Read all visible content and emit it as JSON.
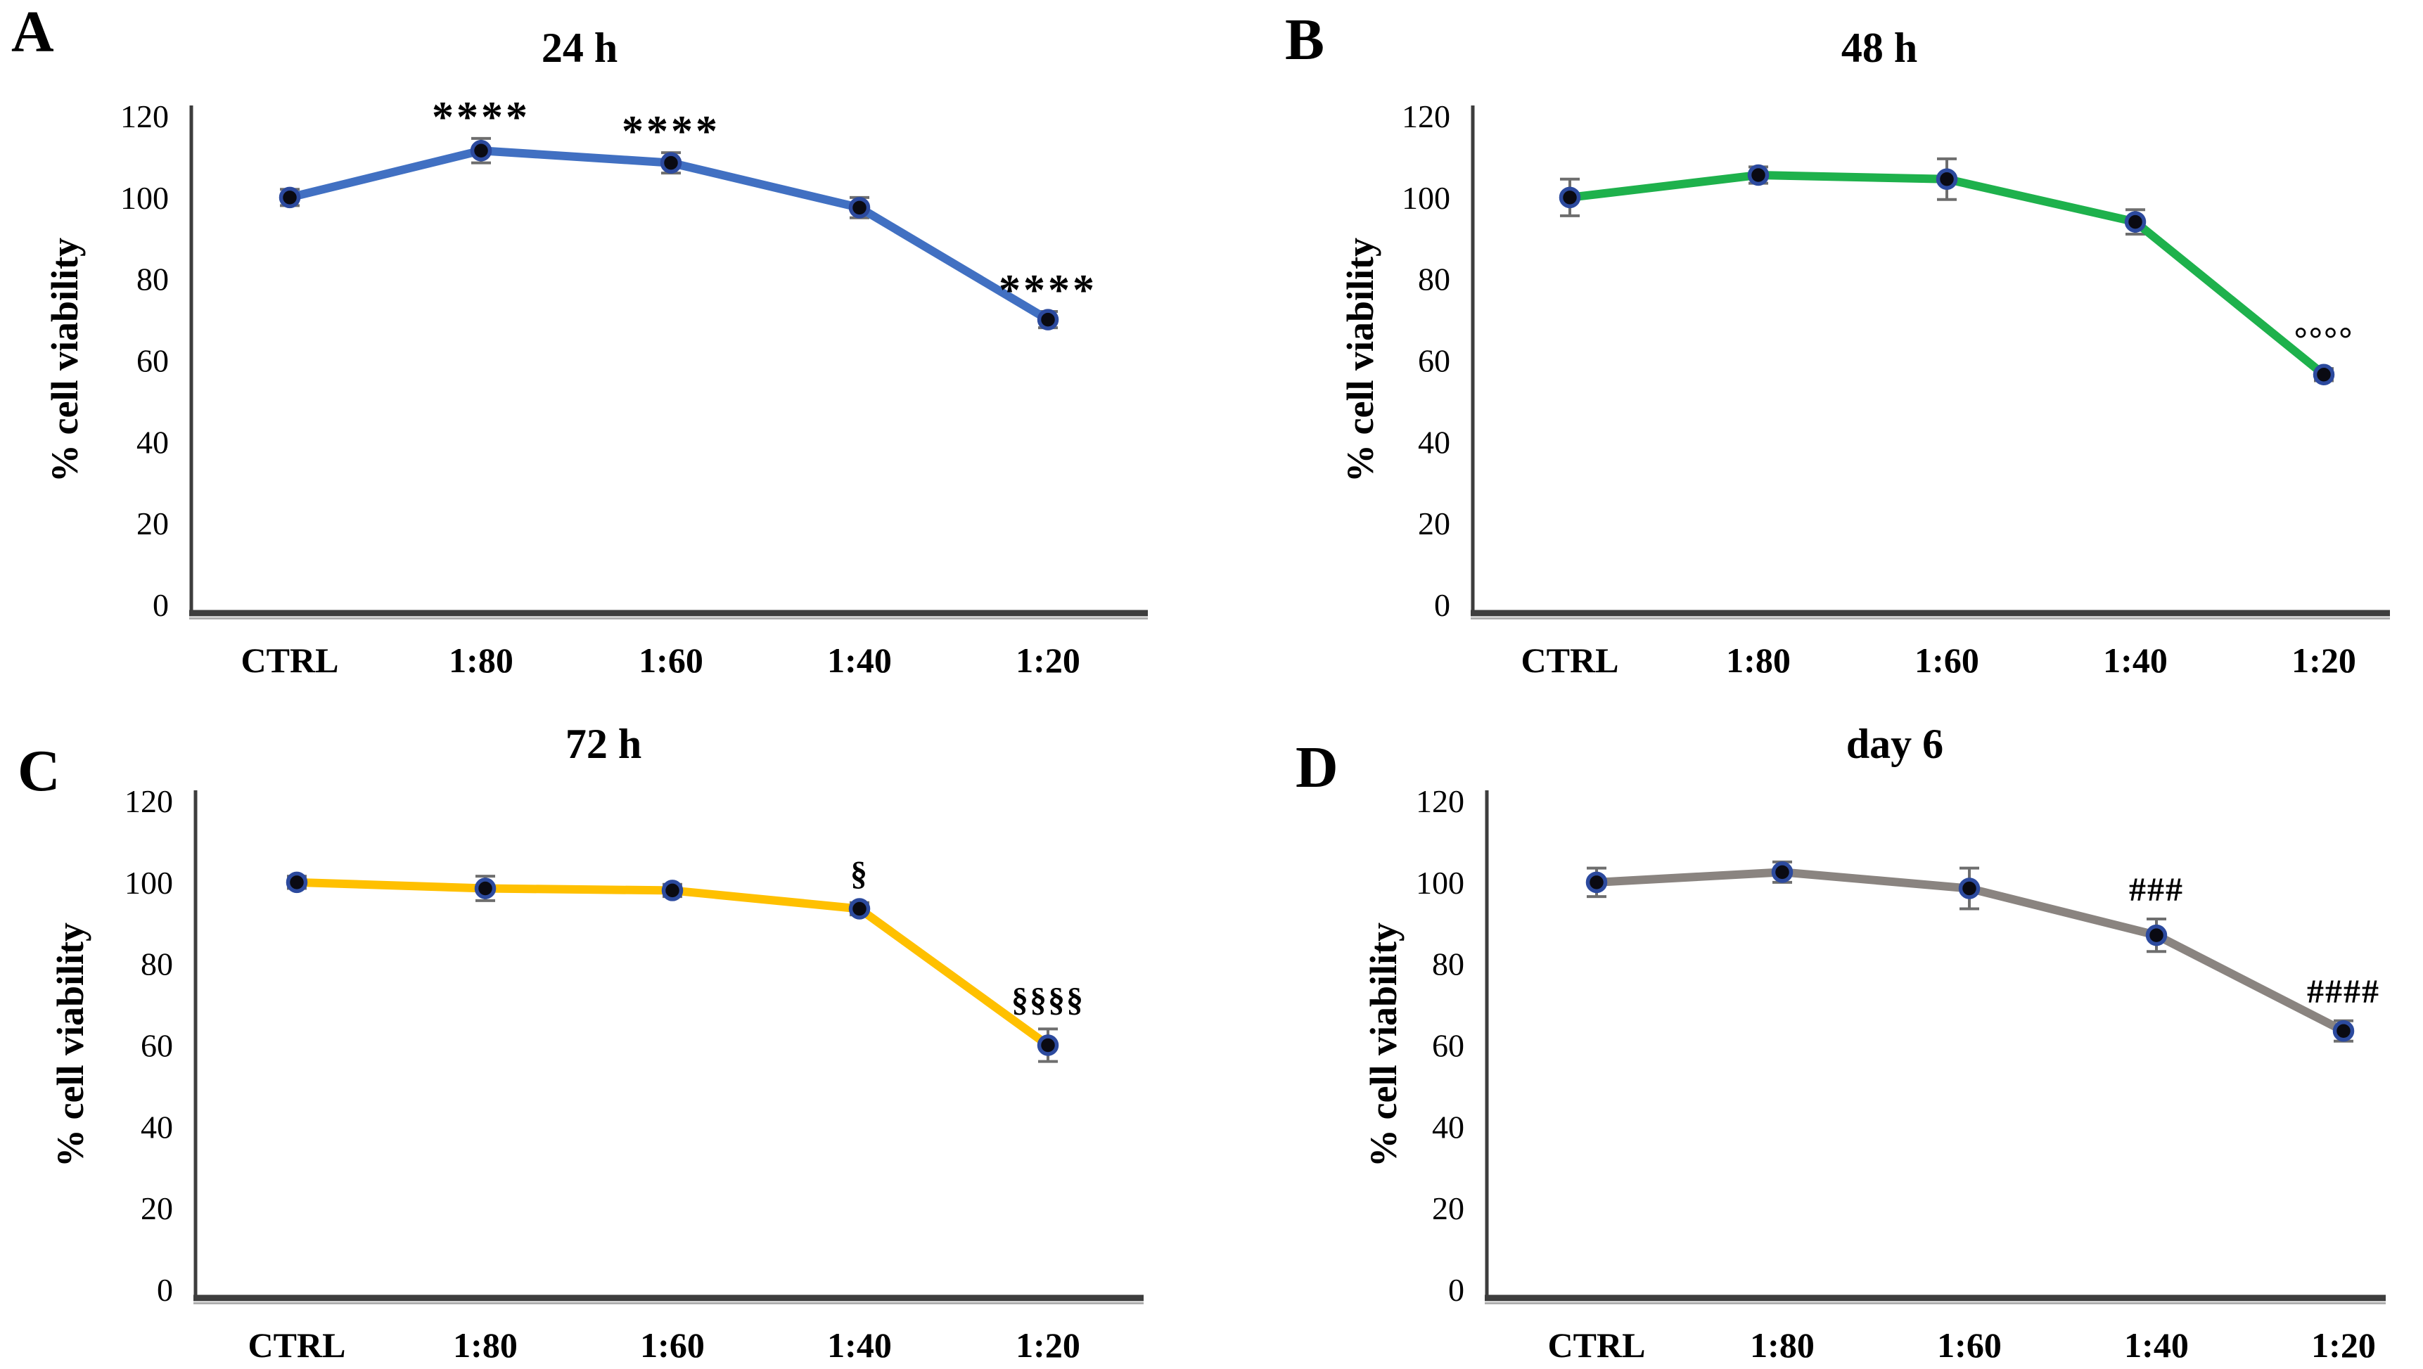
{
  "figure_title": "",
  "style": {
    "background": "#ffffff",
    "text_color": "#000000",
    "axis_color": "#3d3d3d",
    "axis_shadow": "#adadad",
    "error_bar_color": "#6e6e6e",
    "marker_fill": "#0a0a12",
    "marker_ring": "#2c4a9e"
  },
  "chart_data": [
    {
      "type": "line",
      "panel_letter": "A",
      "title": "24 h",
      "ylabel": "% cell viability",
      "xlabel": "",
      "ylim": [
        0,
        120
      ],
      "yticks": [
        0,
        20,
        40,
        60,
        80,
        100,
        120
      ],
      "categories": [
        "CTRL",
        "1:80",
        "1:60",
        "1:40",
        "1:20"
      ],
      "values": [
        100,
        111.5,
        108.5,
        97.5,
        70
      ],
      "errors": [
        2,
        3,
        2.5,
        2.5,
        2
      ],
      "annotations": [
        "",
        "****",
        "****",
        "",
        "****"
      ],
      "line_color": "#4170c2",
      "marker": "filled-circle",
      "grid": false,
      "legend": "none"
    },
    {
      "type": "line",
      "panel_letter": "B",
      "title": "48 h",
      "ylabel": "% cell viability",
      "xlabel": "",
      "ylim": [
        0,
        120
      ],
      "yticks": [
        0,
        20,
        40,
        60,
        80,
        100,
        120
      ],
      "categories": [
        "CTRL",
        "1:80",
        "1:60",
        "1:40",
        "1:20"
      ],
      "values": [
        100,
        105.5,
        104.5,
        94,
        56.5
      ],
      "errors": [
        4.5,
        2,
        5,
        3,
        1.5
      ],
      "annotations": [
        "",
        "",
        "",
        "",
        "°°°°"
      ],
      "line_color": "#1eb14c",
      "marker": "filled-circle",
      "grid": false,
      "legend": "none"
    },
    {
      "type": "line",
      "panel_letter": "C",
      "title": "72 h",
      "ylabel": "% cell viability",
      "xlabel": "",
      "ylim": [
        0,
        120
      ],
      "yticks": [
        0,
        20,
        40,
        60,
        80,
        100,
        120
      ],
      "categories": [
        "CTRL",
        "1:80",
        "1:60",
        "1:40",
        "1:20"
      ],
      "values": [
        100,
        98.5,
        98,
        93.5,
        60
      ],
      "errors": [
        1.5,
        3,
        1.5,
        1.5,
        4
      ],
      "annotations": [
        "",
        "",
        "",
        "§",
        "§§§§"
      ],
      "line_color": "#ffc000",
      "marker": "filled-circle",
      "grid": false,
      "legend": "none"
    },
    {
      "type": "line",
      "panel_letter": "D",
      "title": "day 6",
      "ylabel": "% cell viability",
      "xlabel": "",
      "ylim": [
        0,
        120
      ],
      "yticks": [
        0,
        20,
        40,
        60,
        80,
        100,
        120
      ],
      "categories": [
        "CTRL",
        "1:80",
        "1:60",
        "1:40",
        "1:20"
      ],
      "values": [
        100,
        102.5,
        98.5,
        87,
        63.5
      ],
      "errors": [
        3.5,
        2.5,
        5,
        4,
        2.5
      ],
      "annotations": [
        "",
        "",
        "",
        "###",
        "####"
      ],
      "line_color": "#8a8480",
      "marker": "filled-circle",
      "grid": false,
      "legend": "none"
    }
  ]
}
